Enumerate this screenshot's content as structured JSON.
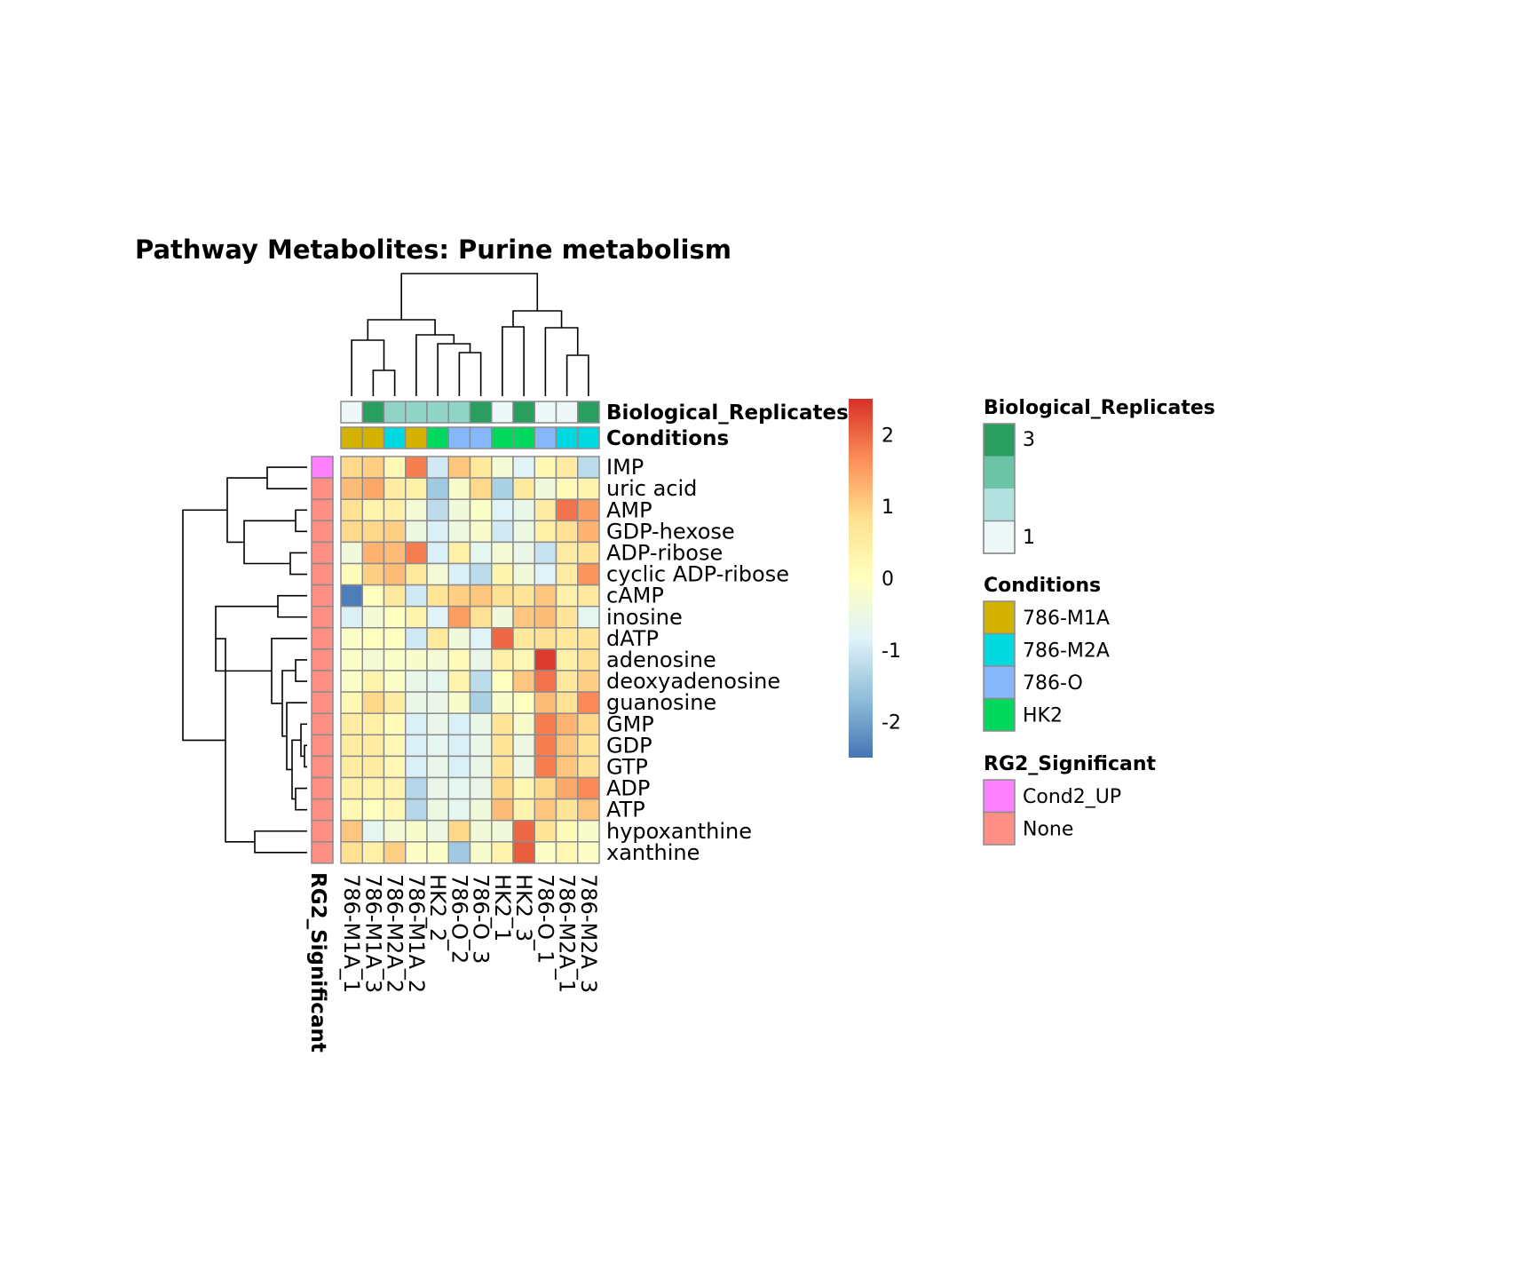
{
  "chart_data": {
    "type": "heatmap",
    "title": "Pathway  Metabolites:  Purine metabolism",
    "columns": [
      "786-M1A_1",
      "786-M1A_3",
      "786-M2A_2",
      "786-M1A_2",
      "HK2_2",
      "786-O_2",
      "786-O_3",
      "HK2_1",
      "HK2_3",
      "786-O_1",
      "786-M2A_1",
      "786-M2A_3"
    ],
    "rows": [
      "IMP",
      "uric acid",
      "AMP",
      "GDP-hexose",
      "ADP-ribose",
      "cyclic ADP-ribose",
      "cAMP",
      "inosine",
      "dATP",
      "adenosine",
      "deoxyadenosine",
      "guanosine",
      "GMP",
      "GDP",
      "GTP",
      "ADP",
      "ATP",
      "hypoxanthine",
      "xanthine"
    ],
    "values": [
      [
        0.9,
        1.0,
        0.2,
        1.8,
        -1.0,
        1.1,
        0.6,
        -0.3,
        -0.8,
        0.2,
        0.5,
        -1.2
      ],
      [
        1.2,
        1.4,
        0.5,
        0.4,
        -1.5,
        -0.2,
        0.9,
        -1.4,
        0.6,
        -0.4,
        0.1,
        0.3
      ],
      [
        0.8,
        0.3,
        0.4,
        -0.3,
        -1.2,
        -0.4,
        -0.1,
        -0.8,
        -0.6,
        0.5,
        1.9,
        1.5
      ],
      [
        0.9,
        0.9,
        1.0,
        -0.5,
        -0.9,
        -0.5,
        -0.2,
        -1.0,
        -0.5,
        0.4,
        0.8,
        1.3
      ],
      [
        -0.4,
        1.3,
        1.2,
        1.8,
        -0.9,
        0.4,
        -0.7,
        -0.3,
        -0.6,
        -1.1,
        0.5,
        0.7
      ],
      [
        0.1,
        1.0,
        1.2,
        0.6,
        -0.3,
        -0.9,
        -1.2,
        0.3,
        -0.4,
        -0.8,
        0.5,
        1.6
      ],
      [
        -2.4,
        0.0,
        0.6,
        -1.0,
        0.7,
        1.0,
        1.1,
        0.8,
        0.7,
        1.1,
        0.4,
        0.6
      ],
      [
        -0.9,
        -0.3,
        0.0,
        0.3,
        -0.8,
        1.5,
        0.8,
        -0.4,
        1.1,
        1.2,
        0.7,
        -0.7
      ],
      [
        -0.1,
        0.0,
        0.0,
        -1.0,
        0.6,
        -0.4,
        -0.8,
        2.0,
        0.6,
        0.8,
        0.6,
        0.7
      ],
      [
        -0.1,
        -0.3,
        -0.1,
        -0.2,
        -0.3,
        0.1,
        -0.6,
        0.4,
        0.2,
        2.4,
        0.4,
        0.8
      ],
      [
        -0.1,
        0.3,
        -0.1,
        -0.6,
        -0.7,
        0.3,
        -1.2,
        0.0,
        1.1,
        1.9,
        0.6,
        1.0
      ],
      [
        0.2,
        0.9,
        0.5,
        -0.6,
        -0.6,
        -0.2,
        -1.4,
        -0.2,
        0.0,
        1.2,
        0.8,
        1.7
      ],
      [
        0.5,
        0.4,
        0.1,
        -0.9,
        -0.6,
        -0.9,
        -0.6,
        0.7,
        -0.2,
        1.8,
        1.3,
        0.9
      ],
      [
        0.5,
        0.5,
        0.2,
        -0.9,
        -0.7,
        -0.9,
        -0.6,
        0.7,
        -0.5,
        1.8,
        1.1,
        0.7
      ],
      [
        0.5,
        0.5,
        0.2,
        -0.9,
        -0.6,
        -0.9,
        -0.6,
        0.7,
        -0.5,
        1.8,
        1.1,
        0.8
      ],
      [
        0.4,
        0.3,
        0.3,
        -1.3,
        -0.6,
        -0.7,
        -0.6,
        0.9,
        0.2,
        0.9,
        1.4,
        1.7
      ],
      [
        0.2,
        0.0,
        0.2,
        -1.3,
        -0.5,
        -0.7,
        -0.4,
        1.2,
        0.3,
        1.1,
        0.7,
        1.1
      ],
      [
        1.1,
        -0.7,
        -0.3,
        -0.2,
        -0.5,
        0.9,
        -0.4,
        -0.4,
        2.0,
        0.7,
        0.1,
        -0.2
      ],
      [
        0.8,
        0.4,
        1.0,
        -0.1,
        -0.1,
        -1.5,
        -0.2,
        0.3,
        2.1,
        -0.1,
        0.2,
        -0.1
      ]
    ],
    "annotations": {
      "Biological_Replicates": [
        1,
        3,
        2,
        2,
        2,
        2,
        3,
        1,
        3,
        1,
        1,
        3
      ],
      "Conditions": [
        "786-M1A",
        "786-M1A",
        "786-M2A",
        "786-M1A",
        "HK2",
        "786-O",
        "786-O",
        "HK2",
        "HK2",
        "786-O",
        "786-M2A",
        "786-M2A"
      ],
      "RG2_Significant": [
        "Cond2_UP",
        "None",
        "None",
        "None",
        "None",
        "None",
        "None",
        "None",
        "None",
        "None",
        "None",
        "None",
        "None",
        "None",
        "None",
        "None",
        "None",
        "None",
        "None"
      ]
    },
    "annotation_labels": {
      "bio_rep": "Biological_Replicates",
      "conditions": "Conditions",
      "rg2": "RG2_Significant"
    },
    "color_scale": {
      "range": [
        -2.5,
        2.5
      ],
      "ticks": [
        2,
        1,
        0,
        -1,
        -2
      ],
      "tick_labels": [
        "2",
        "1",
        "0",
        "-1",
        "-2"
      ],
      "colors": [
        "#4575b4",
        "#91bfdb",
        "#e0f3f8",
        "#ffffbf",
        "#fee090",
        "#fc8d59",
        "#d73027"
      ]
    },
    "legends": {
      "bio_rep": {
        "title": "Biological_Replicates",
        "labels": [
          "3",
          "1"
        ],
        "colors": [
          "#2a9e5f",
          "#6cc4a6",
          "#b2e1df",
          "#eef8f8"
        ]
      },
      "conditions": {
        "title": "Conditions",
        "items": [
          {
            "label": "786-M1A",
            "color": "#d4b300"
          },
          {
            "label": "786-M2A",
            "color": "#00d9e0"
          },
          {
            "label": "786-O",
            "color": "#85b7fa"
          },
          {
            "label": "HK2",
            "color": "#00d95e"
          }
        ]
      },
      "rg2": {
        "title": "RG2_Significant",
        "items": [
          {
            "label": "Cond2_UP",
            "color": "#ff80ff"
          },
          {
            "label": "None",
            "color": "#ff8f85"
          }
        ]
      }
    },
    "bio_rep_colors": {
      "1": "#eef8f8",
      "2": "#8fd4c4",
      "3": "#2a9e5f"
    }
  }
}
